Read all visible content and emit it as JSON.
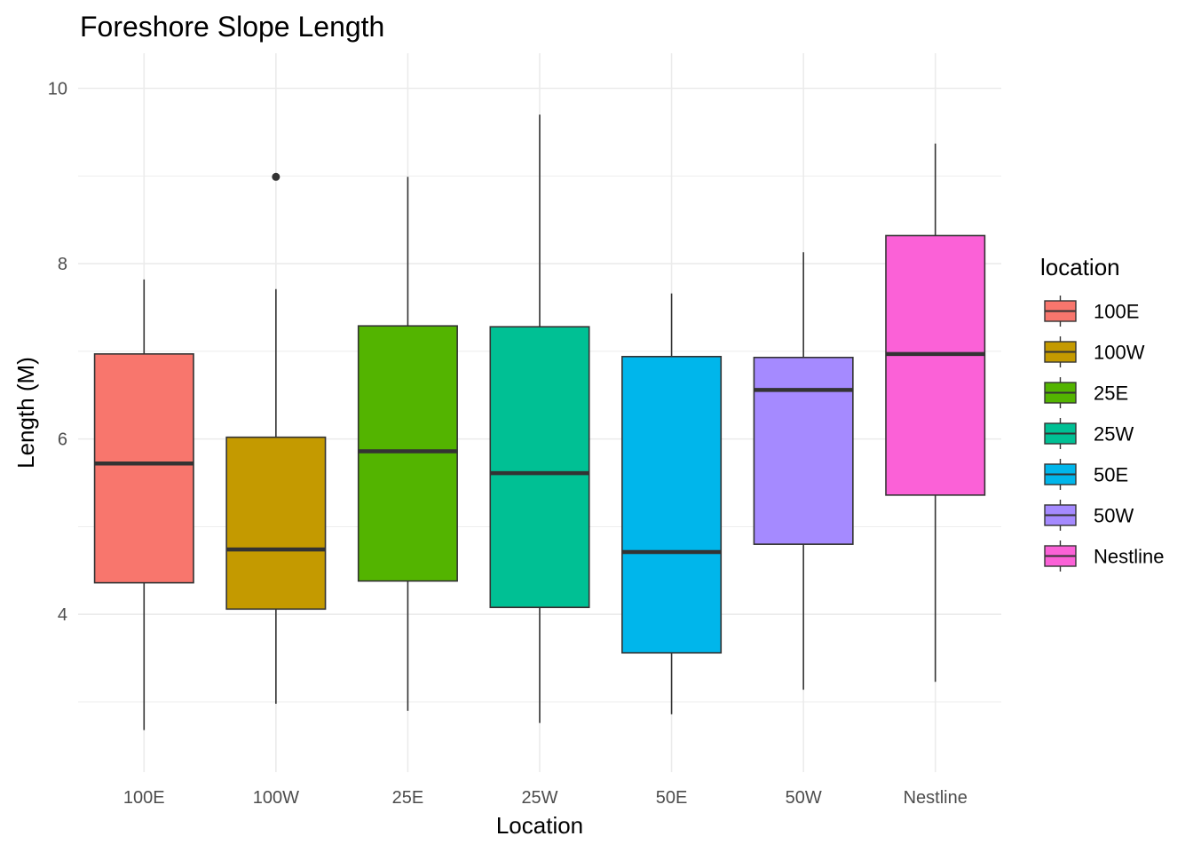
{
  "chart_data": {
    "type": "boxplot",
    "title": "Foreshore Slope Length",
    "xlabel": "Location",
    "ylabel": "Length (M)",
    "ylim": [
      2.2,
      10.4
    ],
    "yticks": [
      4,
      6,
      8,
      10
    ],
    "grid": true,
    "legend": {
      "title": "location",
      "position": "right"
    },
    "categories": [
      "100E",
      "100W",
      "25E",
      "25W",
      "50E",
      "50W",
      "Nestline"
    ],
    "colors": [
      "#F8766D",
      "#C49A00",
      "#53B400",
      "#00C094",
      "#00B6EB",
      "#A58AFF",
      "#FB61D7"
    ],
    "boxes": [
      {
        "category": "100E",
        "min": 2.68,
        "q1": 4.36,
        "median": 5.72,
        "q3": 6.97,
        "max": 7.82,
        "outliers": []
      },
      {
        "category": "100W",
        "min": 2.98,
        "q1": 4.06,
        "median": 4.74,
        "q3": 6.02,
        "max": 7.71,
        "outliers": [
          8.99
        ]
      },
      {
        "category": "25E",
        "min": 2.9,
        "q1": 4.38,
        "median": 5.86,
        "q3": 7.29,
        "max": 8.99,
        "outliers": []
      },
      {
        "category": "25W",
        "min": 2.76,
        "q1": 4.08,
        "median": 5.61,
        "q3": 7.28,
        "max": 9.7,
        "outliers": []
      },
      {
        "category": "50E",
        "min": 2.86,
        "q1": 3.56,
        "median": 4.71,
        "q3": 6.94,
        "max": 7.66,
        "outliers": []
      },
      {
        "category": "50W",
        "min": 3.14,
        "q1": 4.8,
        "median": 6.56,
        "q3": 6.93,
        "max": 8.13,
        "outliers": []
      },
      {
        "category": "Nestline",
        "min": 3.23,
        "q1": 5.36,
        "median": 6.97,
        "q3": 8.32,
        "max": 9.37,
        "outliers": []
      }
    ]
  }
}
